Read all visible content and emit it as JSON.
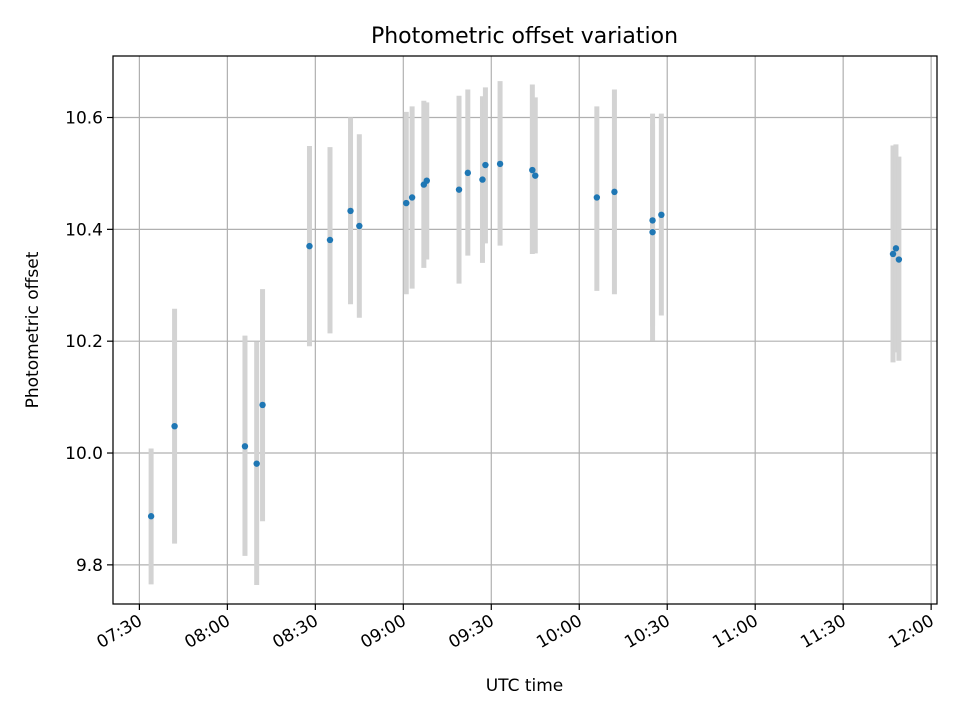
{
  "chart_data": {
    "type": "scatter",
    "title": "Photometric offset variation",
    "xlabel": "UTC time",
    "ylabel": "Photometric offset",
    "x_tick_labels": [
      "07:30",
      "08:00",
      "08:30",
      "09:00",
      "09:30",
      "10:00",
      "10:30",
      "11:00",
      "11:30",
      "12:00"
    ],
    "x_tick_minutes": [
      450,
      480,
      510,
      540,
      570,
      600,
      630,
      660,
      690,
      720
    ],
    "y_tick_labels": [
      "9.8",
      "10.0",
      "10.2",
      "10.4",
      "10.6"
    ],
    "y_tick_values": [
      9.8,
      10.0,
      10.2,
      10.4,
      10.6
    ],
    "xlim": [
      "07:21",
      "12:02"
    ],
    "ylim": [
      9.73,
      10.71
    ],
    "grid": true,
    "colors": {
      "points": "#1f77b4",
      "errorbars": "#d3d3d3",
      "grid": "#b0b0b0"
    },
    "series": [
      {
        "points": [
          {
            "time": "07:34",
            "y": 9.887,
            "ylow": 9.765,
            "yhigh": 10.008
          },
          {
            "time": "07:42",
            "y": 10.048,
            "ylow": 9.838,
            "yhigh": 10.258
          },
          {
            "time": "08:06",
            "y": 10.012,
            "ylow": 9.816,
            "yhigh": 10.21
          },
          {
            "time": "08:10",
            "y": 9.981,
            "ylow": 9.764,
            "yhigh": 10.199
          },
          {
            "time": "08:12",
            "y": 10.086,
            "ylow": 9.878,
            "yhigh": 10.293
          },
          {
            "time": "08:28",
            "y": 10.37,
            "ylow": 10.191,
            "yhigh": 10.549
          },
          {
            "time": "08:35",
            "y": 10.381,
            "ylow": 10.214,
            "yhigh": 10.547
          },
          {
            "time": "08:42",
            "y": 10.433,
            "ylow": 10.266,
            "yhigh": 10.6
          },
          {
            "time": "08:45",
            "y": 10.406,
            "ylow": 10.242,
            "yhigh": 10.57
          },
          {
            "time": "09:01",
            "y": 10.447,
            "ylow": 10.284,
            "yhigh": 10.61
          },
          {
            "time": "09:03",
            "y": 10.457,
            "ylow": 10.294,
            "yhigh": 10.62
          },
          {
            "time": "09:07",
            "y": 10.48,
            "ylow": 10.331,
            "yhigh": 10.63
          },
          {
            "time": "09:08",
            "y": 10.487,
            "ylow": 10.346,
            "yhigh": 10.627
          },
          {
            "time": "09:19",
            "y": 10.471,
            "ylow": 10.303,
            "yhigh": 10.639
          },
          {
            "time": "09:22",
            "y": 10.501,
            "ylow": 10.353,
            "yhigh": 10.65
          },
          {
            "time": "09:27",
            "y": 10.489,
            "ylow": 10.34,
            "yhigh": 10.638
          },
          {
            "time": "09:28",
            "y": 10.515,
            "ylow": 10.375,
            "yhigh": 10.654
          },
          {
            "time": "09:33",
            "y": 10.517,
            "ylow": 10.371,
            "yhigh": 10.665
          },
          {
            "time": "09:44",
            "y": 10.506,
            "ylow": 10.356,
            "yhigh": 10.659
          },
          {
            "time": "09:45",
            "y": 10.496,
            "ylow": 10.357,
            "yhigh": 10.636
          },
          {
            "time": "10:06",
            "y": 10.457,
            "ylow": 10.29,
            "yhigh": 10.62
          },
          {
            "time": "10:12",
            "y": 10.467,
            "ylow": 10.284,
            "yhigh": 10.65
          },
          {
            "time": "10:25",
            "y": 10.416,
            "ylow": 10.227,
            "yhigh": 10.607
          },
          {
            "time": "10:25",
            "y": 10.395,
            "ylow": 10.201,
            "yhigh": 10.588
          },
          {
            "time": "10:28",
            "y": 10.426,
            "ylow": 10.246,
            "yhigh": 10.607
          },
          {
            "time": "11:47",
            "y": 10.356,
            "ylow": 10.162,
            "yhigh": 10.55
          },
          {
            "time": "11:48",
            "y": 10.366,
            "ylow": 10.18,
            "yhigh": 10.552
          },
          {
            "time": "11:49",
            "y": 10.346,
            "ylow": 10.165,
            "yhigh": 10.53
          }
        ]
      }
    ]
  }
}
